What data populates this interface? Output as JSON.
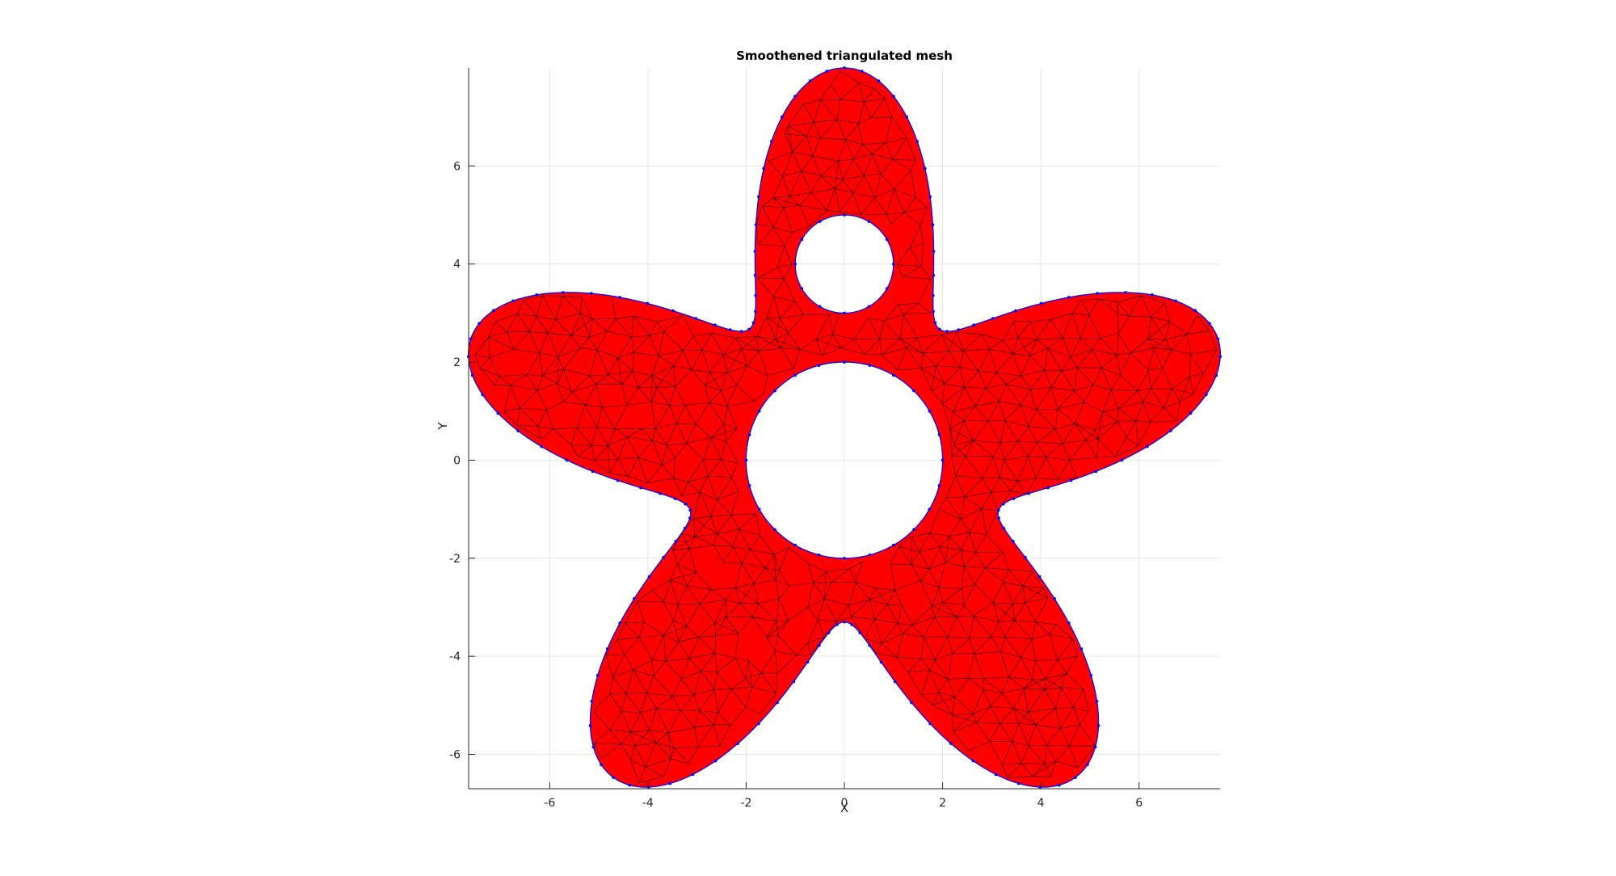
{
  "chart_data": {
    "type": "scatter",
    "title": "Smoothened triangulated mesh",
    "xlabel": "X",
    "ylabel": "Y",
    "xlim": [
      -7.65,
      7.65
    ],
    "ylim": [
      -6.7,
      8.0
    ],
    "xticks": [
      -6,
      -4,
      -2,
      0,
      2,
      4,
      6
    ],
    "yticks": [
      -6,
      -4,
      -2,
      0,
      2,
      4,
      6
    ],
    "xtick_labels": [
      "-6",
      "-4",
      "-2",
      "0",
      "2",
      "4",
      "6"
    ],
    "ytick_labels": [
      "-6",
      "-4",
      "-2",
      "0",
      "2",
      "4",
      "6"
    ],
    "grid": true,
    "aspect": "equal",
    "shape": {
      "outer_boundary": "five-lobed star",
      "outer_radius_base": 5.65,
      "outer_radius_amplitude": 2.35,
      "lobes": 5,
      "holes": [
        {
          "cx": 0,
          "cy": 0,
          "r": 2.0
        },
        {
          "cx": 0,
          "cy": 4.0,
          "r": 1.0
        }
      ]
    },
    "series": [
      {
        "type": "mesh-faces",
        "color": "#ff0000",
        "edge_color": "#000000"
      },
      {
        "type": "boundary-vertices",
        "color": "#0000ff"
      }
    ]
  }
}
